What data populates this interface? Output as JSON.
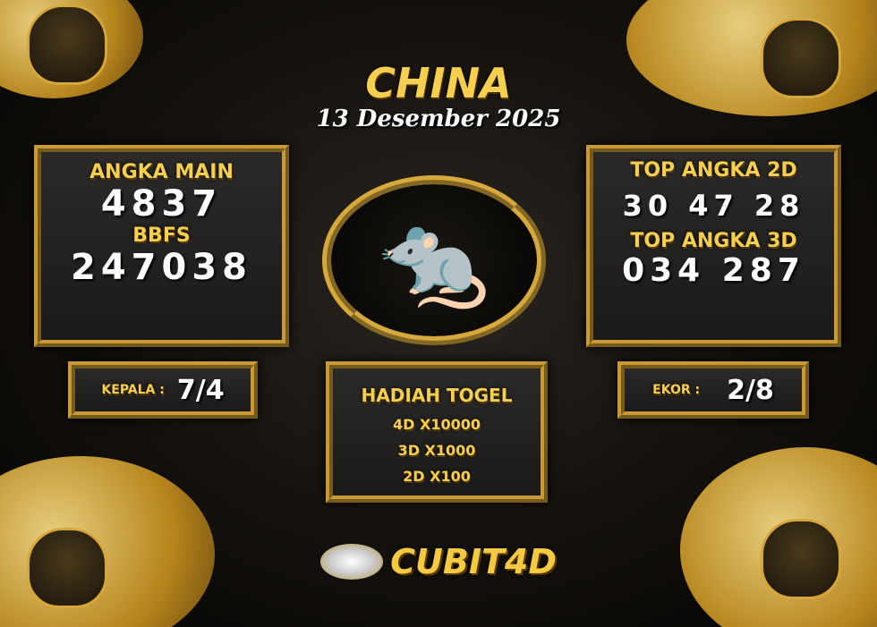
{
  "title": "CHINA",
  "date": "13 Desember 2025",
  "left_panel": {
    "label_main": "ANGKA MAIN",
    "main": "4837",
    "label_bbfs": "BBFS",
    "bbfs": "247038"
  },
  "right_panel": {
    "label_2d": "TOP ANGKA 2D",
    "top_2d": "30 47 28",
    "label_3d": "TOP ANGKA 3D",
    "top_3d": "034 287"
  },
  "kepala": {
    "label": "KEPALA :",
    "value": "7/4"
  },
  "ekor": {
    "label": "EKOR :",
    "value": "2/8"
  },
  "hadiah": {
    "title": "HADIAH TOGEL",
    "lines": [
      "4D X10000",
      "3D X1000",
      "2D X100"
    ]
  },
  "logo": "CUBIT4D",
  "icons": {
    "medallion": "rat-zodiac-icon",
    "corners": "oni-mask-icon"
  },
  "colors": {
    "gold": "#f7cf4f",
    "background": "#14110d"
  }
}
